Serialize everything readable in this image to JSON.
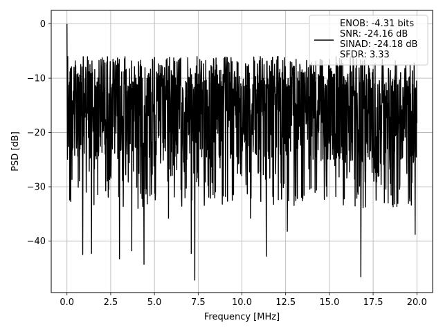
{
  "chart_data": {
    "type": "line",
    "title": "",
    "xlabel": "Frequency [MHz]",
    "ylabel": "PSD [dB]",
    "xlim": [
      -0.9,
      20.9
    ],
    "ylim": [
      -49.5,
      2.5
    ],
    "xticks": [
      0.0,
      2.5,
      5.0,
      7.5,
      10.0,
      12.5,
      15.0,
      17.5,
      20.0
    ],
    "xtick_labels": [
      "0.0",
      "2.5",
      "5.0",
      "7.5",
      "10.0",
      "12.5",
      "15.0",
      "17.5",
      "20.0"
    ],
    "yticks": [
      0,
      -10,
      -20,
      -30,
      -40
    ],
    "ytick_labels": [
      "0",
      "−10",
      "−20",
      "−30",
      "−40"
    ],
    "grid": true,
    "legend_position": "top-right",
    "series": [
      {
        "color": "#000000",
        "x_range": [
          0,
          20
        ],
        "values_summary": "dense noise floor between about -8 dB and -28 dB",
        "peaks": [
          {
            "x": 0.0,
            "y": 0
          },
          {
            "x": 0.05,
            "y": -6
          },
          {
            "x": 0.4,
            "y": -8
          }
        ],
        "dips": [
          {
            "x": 0.9,
            "y": -42.5
          },
          {
            "x": 1.4,
            "y": -42.3
          },
          {
            "x": 3.0,
            "y": -43.3
          },
          {
            "x": 3.7,
            "y": -41.8
          },
          {
            "x": 4.4,
            "y": -44.3
          },
          {
            "x": 5.8,
            "y": -35.8
          },
          {
            "x": 7.1,
            "y": -42.3
          },
          {
            "x": 7.3,
            "y": -47.2
          },
          {
            "x": 10.5,
            "y": -35.8
          },
          {
            "x": 11.4,
            "y": -42.8
          },
          {
            "x": 12.6,
            "y": -38.2
          },
          {
            "x": 16.8,
            "y": -46.6
          },
          {
            "x": 19.9,
            "y": -38.8
          }
        ]
      }
    ],
    "legend_lines": [
      "ENOB: -4.31 bits",
      "SNR: -24.16 dB",
      "SINAD: -24.18 dB",
      "SFDR: 3.33"
    ]
  }
}
